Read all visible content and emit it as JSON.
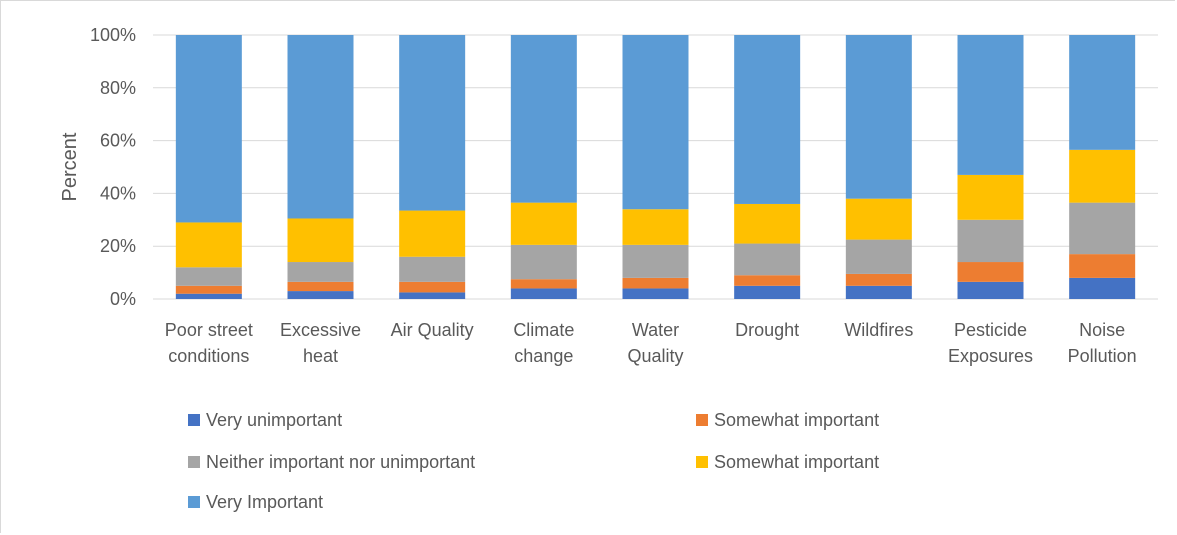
{
  "chart_data": {
    "type": "bar",
    "stacked": true,
    "percent_stacked": true,
    "title": "",
    "xlabel": "",
    "ylabel": "Percent",
    "ylim": [
      0,
      100
    ],
    "yticks": [
      "0%",
      "20%",
      "40%",
      "60%",
      "80%",
      "100%"
    ],
    "grid": true,
    "legend_position": "bottom",
    "categories": [
      [
        "Poor street",
        "conditions"
      ],
      [
        "Excessive",
        "heat"
      ],
      [
        "Air Quality"
      ],
      [
        "Climate",
        "change"
      ],
      [
        "Water",
        "Quality"
      ],
      [
        "Drought"
      ],
      [
        "Wildfires"
      ],
      [
        "Pesticide",
        "Exposures"
      ],
      [
        "Noise",
        "Pollution"
      ]
    ],
    "series": [
      {
        "name": "Very unimportant",
        "color": "#4472C4",
        "values": [
          2,
          3,
          2.5,
          4,
          4,
          5,
          5,
          6.5,
          8
        ]
      },
      {
        "name": "Somewhat important",
        "color": "#ED7D31",
        "values": [
          3,
          3.5,
          4,
          3.5,
          4,
          4,
          4.5,
          7.5,
          9
        ]
      },
      {
        "name": "Neither important nor unimportant",
        "color": "#A5A5A5",
        "values": [
          7,
          7.5,
          9.5,
          13,
          12.5,
          12,
          13,
          16,
          19.5
        ]
      },
      {
        "name": "Somewhat important",
        "color": "#FFC000",
        "values": [
          17,
          16.5,
          17.5,
          16,
          13.5,
          15,
          15.5,
          17,
          20
        ]
      },
      {
        "name": "Very Important",
        "color": "#5B9BD5",
        "values": [
          71,
          69.5,
          66.5,
          63.5,
          66,
          64,
          62,
          53,
          43.5
        ]
      }
    ]
  }
}
